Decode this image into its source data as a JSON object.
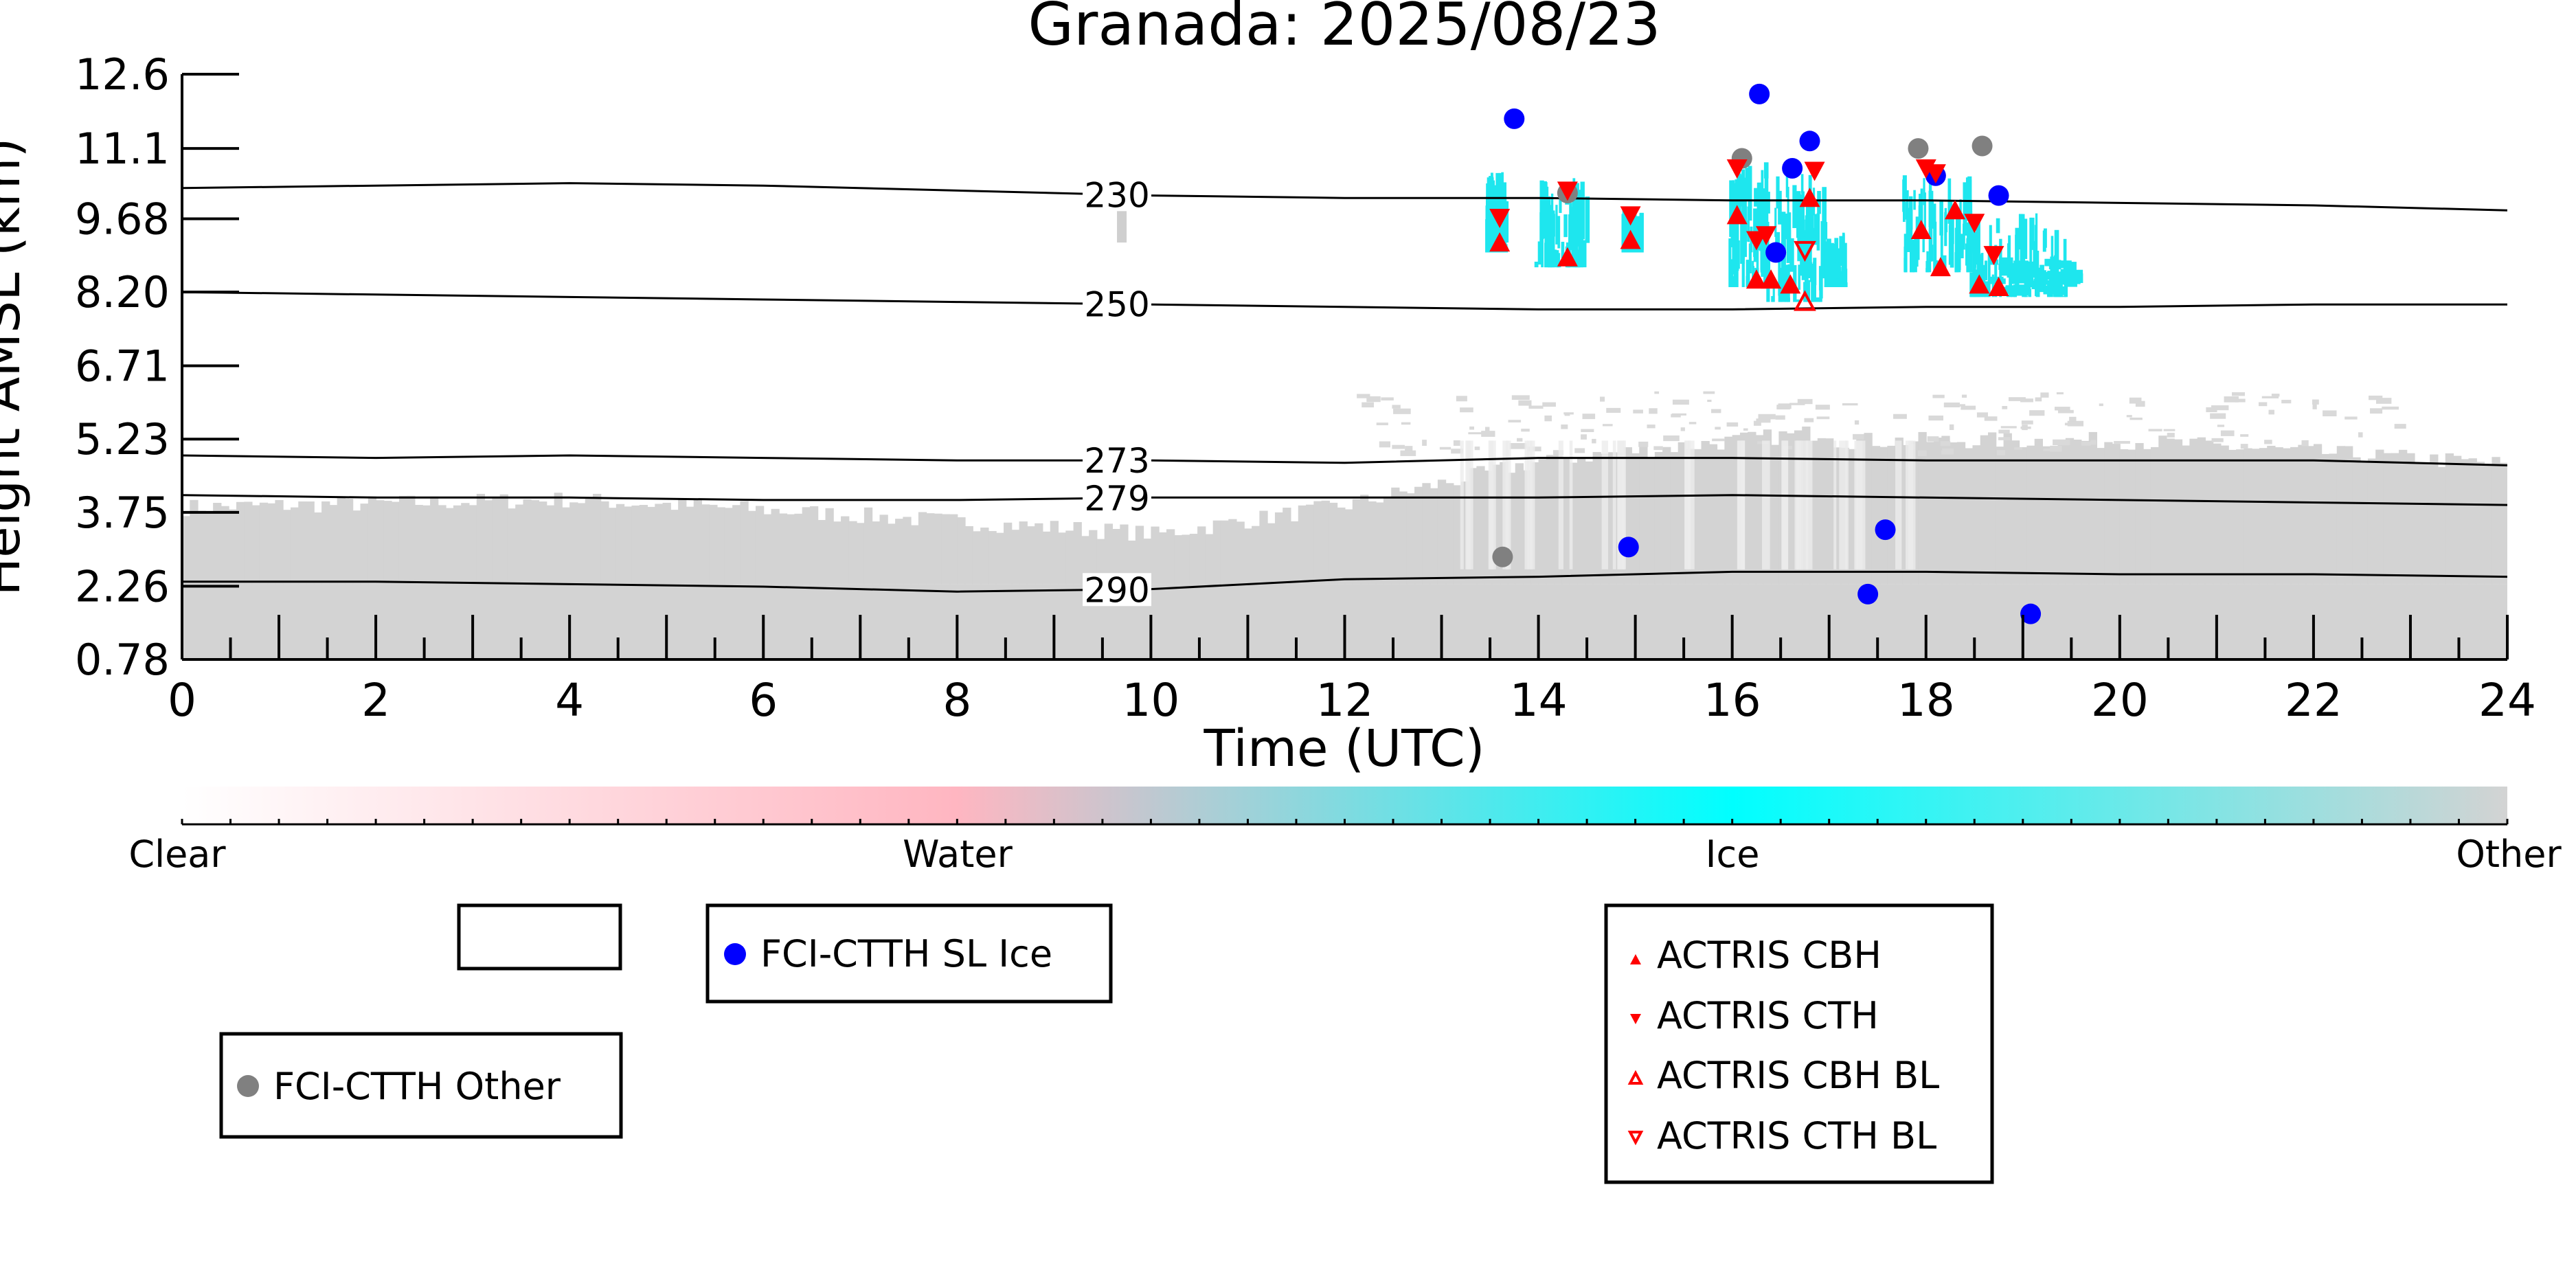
{
  "chart_data": {
    "type": "scatter",
    "title": "Granada: 2025/08/23",
    "xlabel": "Time (UTC)",
    "ylabel": "Height AMSL (km)",
    "xlim": [
      0,
      24
    ],
    "ylim": [
      0.78,
      12.6
    ],
    "x_ticks": [
      "0",
      "2",
      "4",
      "6",
      "8",
      "10",
      "12",
      "14",
      "16",
      "18",
      "20",
      "22",
      "24"
    ],
    "y_ticks": [
      "0.78",
      "2.26",
      "3.75",
      "5.23",
      "6.71",
      "8.20",
      "9.68",
      "11.1",
      "12.6"
    ],
    "colorbar": {
      "labels": [
        "Clear",
        "Water",
        "Ice",
        "Other"
      ],
      "colors": [
        "#ffffff",
        "#ffb6c1",
        "#00ffff",
        "#d3d3d3"
      ]
    },
    "isotherms": [
      {
        "label": "230",
        "label_x": 9.65,
        "points": [
          [
            0,
            10.3
          ],
          [
            2,
            10.35
          ],
          [
            4,
            10.4
          ],
          [
            6,
            10.35
          ],
          [
            8,
            10.25
          ],
          [
            10,
            10.15
          ],
          [
            12,
            10.1
          ],
          [
            14,
            10.1
          ],
          [
            16,
            10.05
          ],
          [
            18,
            10.05
          ],
          [
            20,
            10.0
          ],
          [
            22,
            9.95
          ],
          [
            24,
            9.85
          ]
        ]
      },
      {
        "label": "250",
        "label_x": 9.65,
        "points": [
          [
            0,
            8.2
          ],
          [
            2,
            8.15
          ],
          [
            4,
            8.1
          ],
          [
            6,
            8.05
          ],
          [
            8,
            8.0
          ],
          [
            10,
            7.95
          ],
          [
            12,
            7.9
          ],
          [
            14,
            7.85
          ],
          [
            16,
            7.85
          ],
          [
            18,
            7.9
          ],
          [
            20,
            7.9
          ],
          [
            22,
            7.95
          ],
          [
            24,
            7.95
          ]
        ]
      },
      {
        "label": "273",
        "label_x": 9.65,
        "points": [
          [
            0,
            4.9
          ],
          [
            2,
            4.85
          ],
          [
            4,
            4.9
          ],
          [
            6,
            4.85
          ],
          [
            8,
            4.8
          ],
          [
            10,
            4.8
          ],
          [
            12,
            4.75
          ],
          [
            14,
            4.85
          ],
          [
            16,
            4.85
          ],
          [
            18,
            4.8
          ],
          [
            20,
            4.8
          ],
          [
            22,
            4.8
          ],
          [
            24,
            4.7
          ]
        ]
      },
      {
        "label": "279",
        "label_x": 9.65,
        "points": [
          [
            0,
            4.1
          ],
          [
            2,
            4.05
          ],
          [
            4,
            4.05
          ],
          [
            6,
            4.0
          ],
          [
            8,
            4.0
          ],
          [
            10,
            4.05
          ],
          [
            12,
            4.05
          ],
          [
            14,
            4.05
          ],
          [
            16,
            4.1
          ],
          [
            18,
            4.05
          ],
          [
            20,
            4.0
          ],
          [
            22,
            3.95
          ],
          [
            24,
            3.9
          ]
        ]
      },
      {
        "label": "290",
        "label_x": 9.65,
        "points": [
          [
            0,
            2.35
          ],
          [
            2,
            2.35
          ],
          [
            4,
            2.3
          ],
          [
            6,
            2.25
          ],
          [
            8,
            2.15
          ],
          [
            10,
            2.2
          ],
          [
            12,
            2.4
          ],
          [
            14,
            2.45
          ],
          [
            16,
            2.55
          ],
          [
            18,
            2.55
          ],
          [
            20,
            2.5
          ],
          [
            22,
            2.5
          ],
          [
            24,
            2.45
          ]
        ]
      }
    ],
    "series": [
      {
        "name": "FCI-CTTH SL Ice",
        "marker": "circle",
        "color": "#0000ff",
        "x": [
          13.75,
          16.28,
          16.8,
          16.45,
          18.1,
          18.75,
          14.93,
          17.58,
          17.4,
          19.08,
          16.62
        ],
        "y": [
          11.7,
          12.2,
          11.25,
          9.0,
          10.55,
          10.15,
          3.05,
          3.4,
          2.1,
          1.7,
          10.7
        ]
      },
      {
        "name": "FCI-CTTH Other",
        "marker": "circle",
        "color": "#808080",
        "x": [
          13.63,
          14.3,
          16.1,
          17.92,
          18.58
        ],
        "y": [
          2.85,
          10.2,
          10.9,
          11.1,
          11.15
        ]
      },
      {
        "name": "ACTRIS CBH",
        "marker": "triangle-up",
        "color": "#ff0000",
        "x": [
          13.6,
          14.3,
          14.95,
          16.05,
          16.4,
          16.6,
          16.8,
          18.3,
          16.25,
          17.95,
          18.75,
          18.55,
          18.15
        ],
        "y": [
          9.2,
          8.9,
          9.25,
          9.75,
          8.45,
          8.35,
          10.1,
          9.85,
          8.45,
          9.45,
          8.3,
          8.35,
          8.7
        ]
      },
      {
        "name": "ACTRIS CTH",
        "marker": "triangle-down",
        "color": "#ff0000",
        "x": [
          13.6,
          14.3,
          14.95,
          16.05,
          16.35,
          16.85,
          18.0,
          18.1,
          18.5,
          18.7,
          16.25
        ],
        "y": [
          9.7,
          10.25,
          9.75,
          10.7,
          9.35,
          10.65,
          10.7,
          10.6,
          9.6,
          8.95,
          9.25
        ]
      },
      {
        "name": "ACTRIS CBH BL",
        "marker": "triangle-up-open",
        "color": "#ff0000",
        "x": [
          16.75
        ],
        "y": [
          8.0
        ]
      },
      {
        "name": "ACTRIS CTH BL",
        "marker": "triangle-down-open",
        "color": "#ff0000",
        "x": [
          16.75
        ],
        "y": [
          9.05
        ]
      }
    ],
    "legends": [
      {
        "entries": []
      },
      {
        "entries": [
          "FCI-CTTH SL Ice"
        ]
      },
      {
        "entries": [
          "FCI-CTTH Other"
        ]
      },
      {
        "entries": [
          "ACTRIS CBH",
          "ACTRIS CTH",
          "ACTRIS CBH BL",
          "ACTRIS CTH BL"
        ]
      }
    ]
  }
}
